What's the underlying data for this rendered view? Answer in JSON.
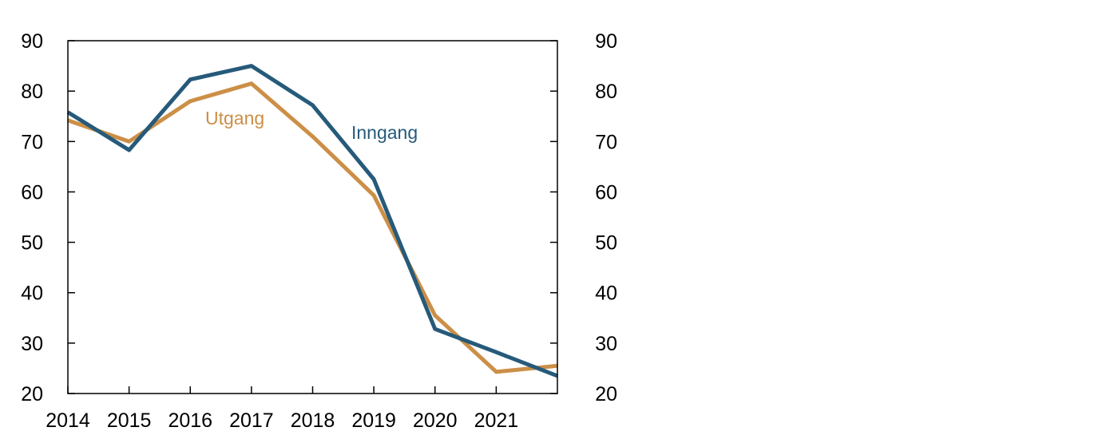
{
  "chart_data": {
    "type": "line",
    "title": "",
    "xlabel": "",
    "ylabel": "",
    "x": [
      2014,
      2015,
      2016,
      2017,
      2018,
      2019,
      2020,
      2021,
      2022
    ],
    "xlim": [
      2014,
      2022
    ],
    "x_tick_labels": [
      "2014",
      "2015",
      "2016",
      "2017",
      "2018",
      "2019",
      "2020",
      "2021"
    ],
    "ylim": [
      20,
      90
    ],
    "y_ticks": [
      20,
      30,
      40,
      50,
      60,
      70,
      80,
      90
    ],
    "y_tick_labels": [
      "20",
      "30",
      "40",
      "50",
      "60",
      "70",
      "80",
      "90"
    ],
    "right_axis_tick_labels": [
      "20",
      "30",
      "40",
      "50",
      "60",
      "70",
      "80",
      "90"
    ],
    "grid": false,
    "legend": "inline labels",
    "series": [
      {
        "name": "Inngang",
        "color": "#265a7a",
        "values": [
          75.8,
          68.3,
          82.3,
          85.0,
          77.2,
          62.5,
          32.8,
          28.2,
          23.5
        ]
      },
      {
        "name": "Utgang",
        "color": "#cc8f47",
        "values": [
          74.2,
          70.0,
          78.0,
          81.5,
          71.0,
          59.3,
          35.5,
          24.3,
          25.5
        ]
      }
    ]
  }
}
